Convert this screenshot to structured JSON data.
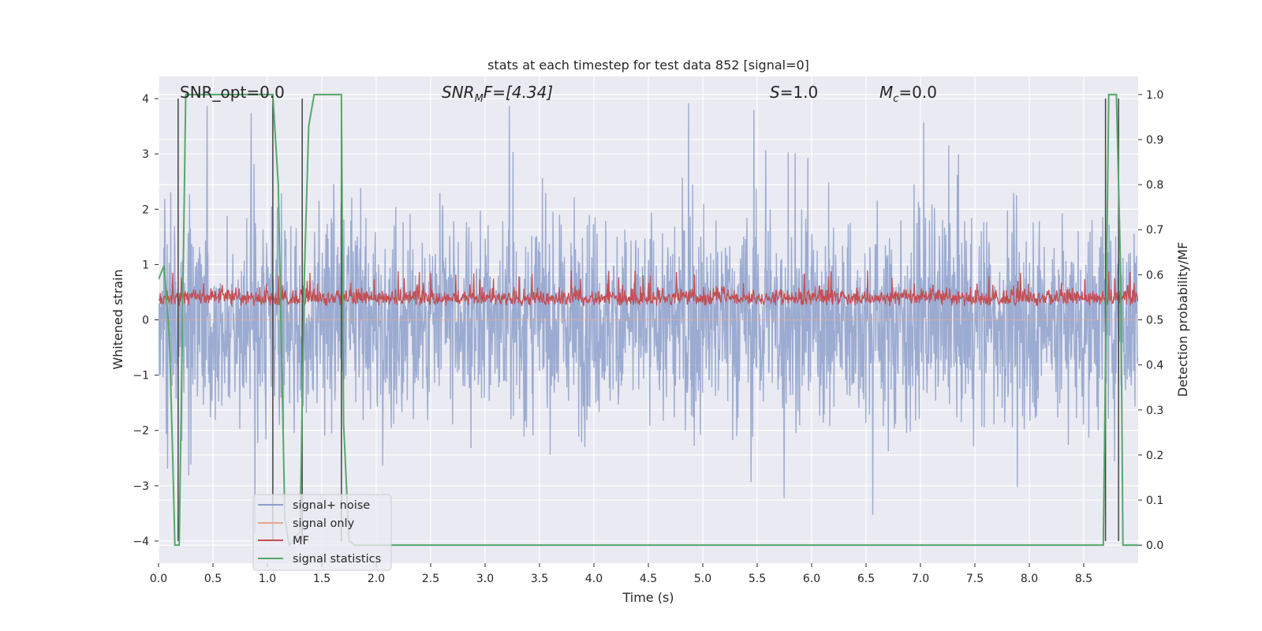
{
  "chart_data": {
    "type": "line",
    "title": "stats at each timestep for test data 852 [signal=0]",
    "xlabel": "Time (s)",
    "ylabel_left": "Whitened strain",
    "ylabel_right": "Detection probability/MF",
    "xlim": [
      0.0,
      9.0
    ],
    "ylim_left": [
      -4.4,
      4.4
    ],
    "ylim_right": [
      -0.04,
      1.04
    ],
    "x_ticks": [
      "0.0",
      "0.5",
      "1.0",
      "1.5",
      "2.0",
      "2.5",
      "3.0",
      "3.5",
      "4.0",
      "4.5",
      "5.0",
      "5.5",
      "6.0",
      "6.5",
      "7.0",
      "7.5",
      "8.0",
      "8.5"
    ],
    "y_ticks_left": [
      "4",
      "3",
      "2",
      "1",
      "0",
      "−1",
      "−2",
      "−3",
      "−4"
    ],
    "y_ticks_right": [
      "1.0",
      "0.9",
      "0.8",
      "0.7",
      "0.6",
      "0.5",
      "0.4",
      "0.3",
      "0.2",
      "0.1",
      "0.0"
    ],
    "grid": true,
    "legend_position": "lower-left",
    "annotations": {
      "snr_opt": "SNR_opt=0.0",
      "snr_mf_base": "SNR",
      "snr_mf_sub": "M",
      "snr_mf_rest": "F=[4.34]",
      "s_label": "S",
      "s_rest": "=1.0",
      "mc_base": "M",
      "mc_sub": "c",
      "mc_rest": "=0.0"
    },
    "colors": {
      "signal_noise": "#8da0cb",
      "signal_only": "#e8a58a",
      "mf": "#c44e52",
      "signal_statistics": "#55a868",
      "vlines": "#444444",
      "background": "#eaeaf2"
    },
    "series": [
      {
        "name": "signal+ noise",
        "kind": "noise",
        "approx_amplitude": 1.55,
        "peak_extent": 4.0
      },
      {
        "name": "signal only",
        "kind": "flat",
        "values": [
          0
        ]
      },
      {
        "name": "MF",
        "kind": "noise-band",
        "axis": "right",
        "range": [
          0.5,
          0.61
        ]
      },
      {
        "name": "signal statistics",
        "axis": "right",
        "x": [
          0.0,
          0.05,
          0.1,
          0.13,
          0.15,
          0.19,
          0.25,
          0.3,
          1.0,
          1.05,
          1.1,
          1.16,
          1.2,
          1.3,
          1.34,
          1.38,
          1.43,
          1.5,
          1.6,
          1.68,
          1.7,
          1.75,
          1.8,
          8.68,
          8.73,
          8.8,
          8.84,
          8.86,
          9.0
        ],
        "y": [
          0.59,
          0.62,
          0.46,
          0.2,
          0.0,
          0.0,
          1.0,
          1.0,
          1.0,
          1.0,
          0.8,
          0.06,
          0.0,
          0.03,
          0.6,
          0.93,
          1.0,
          1.0,
          1.0,
          1.0,
          0.27,
          0.01,
          0.0,
          0.0,
          1.0,
          1.0,
          0.6,
          0.0,
          0.0
        ]
      },
      {
        "name": "vertical markers",
        "kind": "vlines",
        "x": [
          0.18,
          1.05,
          1.32,
          1.68,
          8.7,
          8.82
        ]
      }
    ],
    "legend": [
      "signal+ noise",
      "signal only",
      "MF",
      "signal statistics"
    ]
  }
}
